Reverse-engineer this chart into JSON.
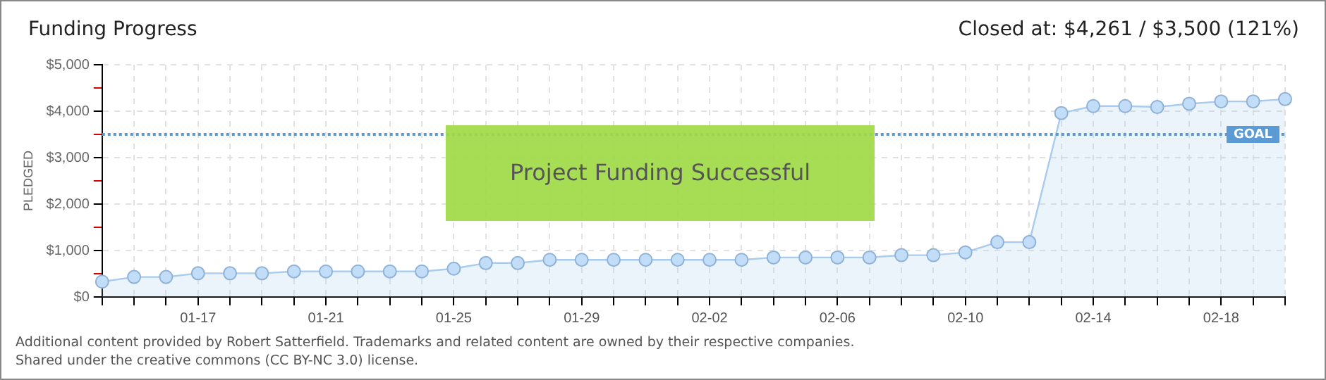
{
  "chart_data": {
    "type": "area",
    "title": "Funding Progress",
    "ylabel": "PLEDGED",
    "annotations": [
      "Closed at: $4,261 / $3,500 (121%)",
      "Project Funding Successful",
      "Additional content provided by Robert Satterfield. Trademarks and related content are owned by their respective companies.",
      "Shared under the creative commons (CC BY-NC 3.0) license."
    ],
    "categories": [
      null,
      null,
      null,
      "01-17",
      null,
      null,
      null,
      "01-21",
      null,
      null,
      null,
      "01-25",
      null,
      null,
      null,
      "01-29",
      null,
      null,
      null,
      "02-02",
      null,
      null,
      null,
      "02-06",
      null,
      null,
      null,
      "02-10",
      null,
      null,
      null,
      "02-14",
      null,
      null,
      null,
      "02-18",
      null,
      null
    ],
    "series": [
      {
        "color": "#a8cbee",
        "values": [
          330,
          430,
          430,
          510,
          510,
          510,
          550,
          550,
          550,
          550,
          550,
          610,
          730,
          730,
          800,
          800,
          800,
          800,
          800,
          800,
          800,
          850,
          850,
          850,
          850,
          900,
          900,
          960,
          1180,
          1180,
          3960,
          4110,
          4110,
          4090,
          4160,
          4210,
          4210,
          4260
        ]
      }
    ],
    "ylim": [
      0,
      5000
    ],
    "yticks": [
      {
        "value": 0,
        "label": "$0"
      },
      {
        "value": 500,
        "label": null
      },
      {
        "value": 1000,
        "label": "$1,000"
      },
      {
        "value": 1500,
        "label": null
      },
      {
        "value": 2000,
        "label": "$2,000"
      },
      {
        "value": 2500,
        "label": null
      },
      {
        "value": 3000,
        "label": "$3,000"
      },
      {
        "value": 3500,
        "label": null
      },
      {
        "value": 4000,
        "label": "$4,000"
      },
      {
        "value": 4500,
        "label": null
      },
      {
        "value": 5000,
        "label": "$5,000"
      }
    ],
    "ref_lines": [
      {
        "axis": "y",
        "value": 3500,
        "label": "GOAL",
        "color": "#5b9bd5",
        "line_style": "dotted"
      }
    ],
    "grid": true,
    "legend": false,
    "marker": "circle",
    "line_style": "solid"
  }
}
